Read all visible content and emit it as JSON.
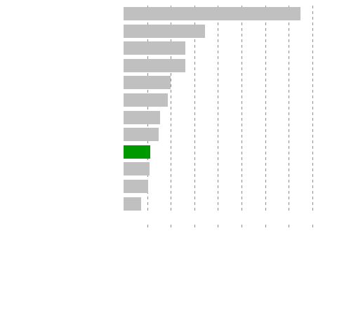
{
  "chart_data": {
    "type": "bar",
    "orientation": "horizontal",
    "categories": [
      "",
      "",
      "",
      "",
      "",
      "",
      "",
      "",
      "",
      "",
      "",
      ""
    ],
    "values": [
      100,
      46,
      35,
      35,
      26.5,
      25,
      20.5,
      20,
      15,
      14.5,
      14,
      10
    ],
    "highlight_index": 8,
    "colors": {
      "bar": "#c0c0c0",
      "highlight": "#009900",
      "grid": "#8c8c8c"
    },
    "xlim": [
      0,
      107
    ],
    "xticks": [
      13.3,
      26.7,
      40,
      53.3,
      66.7,
      80,
      93.3,
      106.7
    ],
    "grid": true,
    "title": "",
    "xlabel": "",
    "ylabel": ""
  }
}
